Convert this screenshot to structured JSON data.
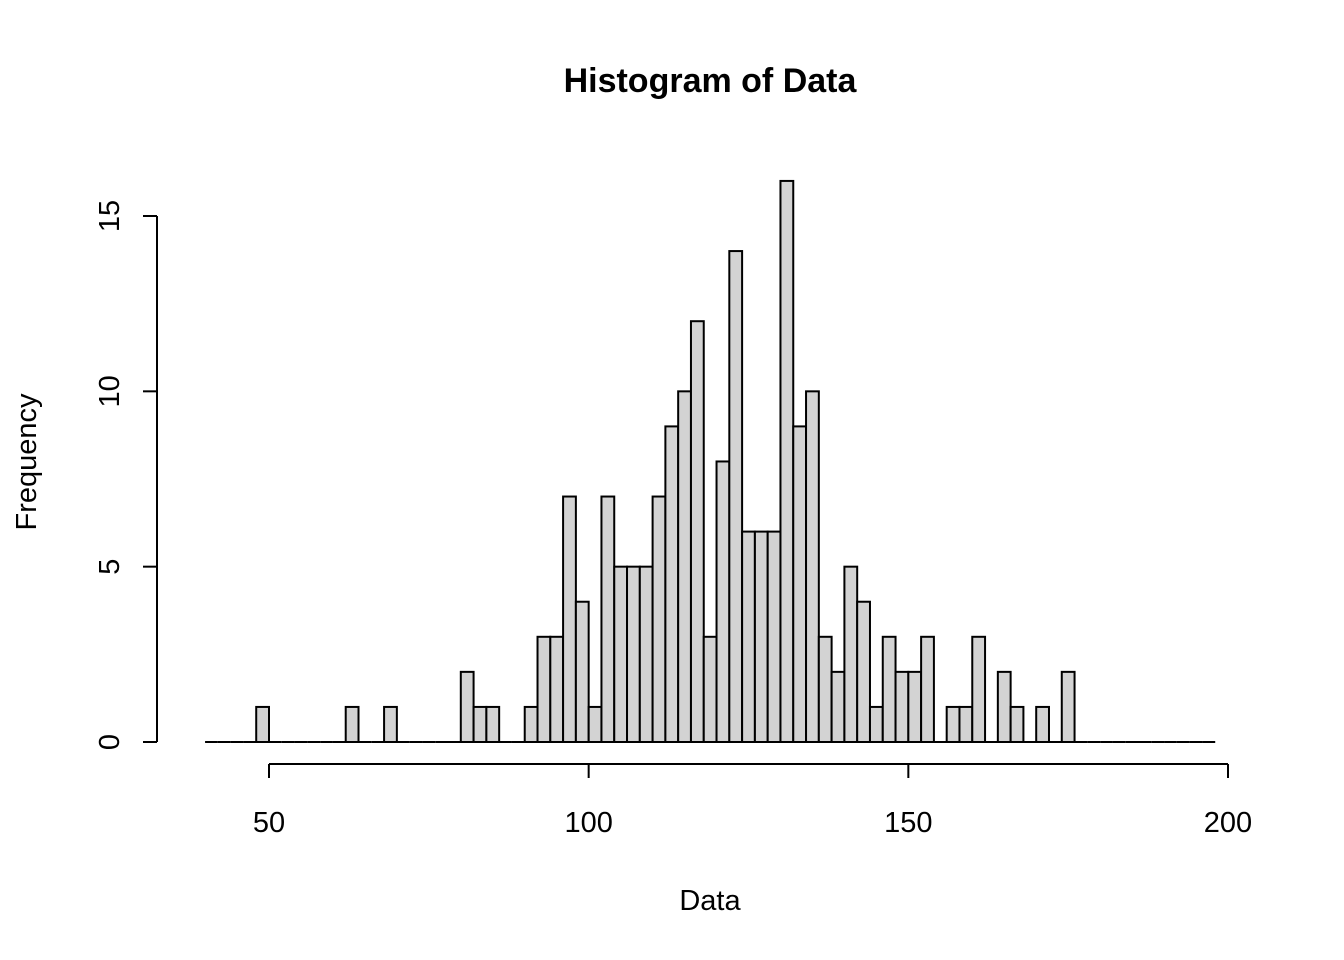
{
  "chart_data": {
    "type": "bar",
    "title": "Histogram of Data",
    "xlabel": "Data",
    "ylabel": "Frequency",
    "bin_width": 2,
    "bins_start": 40,
    "bins_end": 198,
    "counts": [
      0,
      0,
      0,
      0,
      1,
      0,
      0,
      0,
      0,
      0,
      0,
      1,
      0,
      0,
      1,
      0,
      0,
      0,
      0,
      0,
      2,
      1,
      1,
      0,
      0,
      1,
      3,
      3,
      7,
      4,
      1,
      7,
      5,
      5,
      5,
      7,
      9,
      10,
      12,
      3,
      8,
      14,
      6,
      6,
      6,
      16,
      9,
      10,
      3,
      2,
      5,
      4,
      1,
      3,
      2,
      2,
      3,
      0,
      1,
      1,
      3,
      0,
      2,
      1,
      0,
      1,
      0,
      2,
      0,
      0,
      0,
      0,
      0,
      0,
      0,
      0,
      0,
      0,
      0
    ],
    "xlim": [
      40,
      198
    ],
    "ylim": [
      0,
      16
    ],
    "x_ticks": [
      50,
      100,
      150,
      200
    ],
    "x_tick_labels": [
      "50",
      "100",
      "150",
      "200"
    ],
    "y_ticks": [
      0,
      5,
      10,
      15
    ],
    "y_tick_labels": [
      "0",
      "5",
      "10",
      "15"
    ],
    "grid": false,
    "colors": {
      "bar_fill": "#d3d3d3",
      "bar_stroke": "#000000"
    }
  }
}
